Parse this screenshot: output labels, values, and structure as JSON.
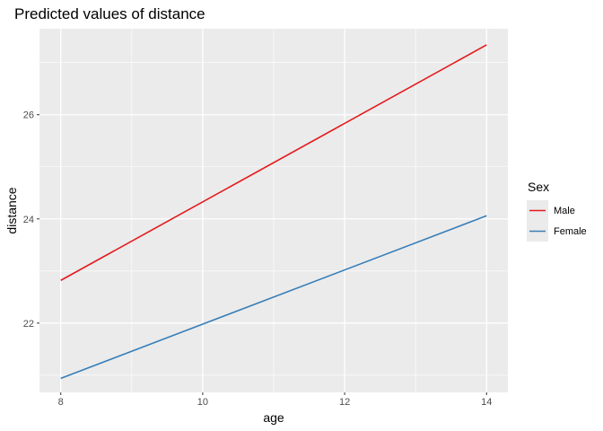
{
  "chart_data": {
    "type": "line",
    "title": "Predicted values of distance",
    "xlabel": "age",
    "ylabel": "distance",
    "x": [
      8,
      14
    ],
    "xticks": [
      8,
      10,
      12,
      14
    ],
    "xtick_labels": [
      "8",
      "10",
      "12",
      "14"
    ],
    "yticks": [
      22,
      24,
      26
    ],
    "ytick_labels": [
      "22",
      "24",
      "26"
    ],
    "xlim": [
      7.7,
      14.3
    ],
    "ylim": [
      20.67,
      27.65
    ],
    "grid": true,
    "legend": {
      "title": "Sex",
      "position": "right"
    },
    "series": [
      {
        "name": "Male",
        "color": "#e41a1c",
        "values": [
          22.82,
          27.34
        ]
      },
      {
        "name": "Female",
        "color": "#377eb8",
        "values": [
          20.94,
          24.06
        ]
      }
    ]
  }
}
